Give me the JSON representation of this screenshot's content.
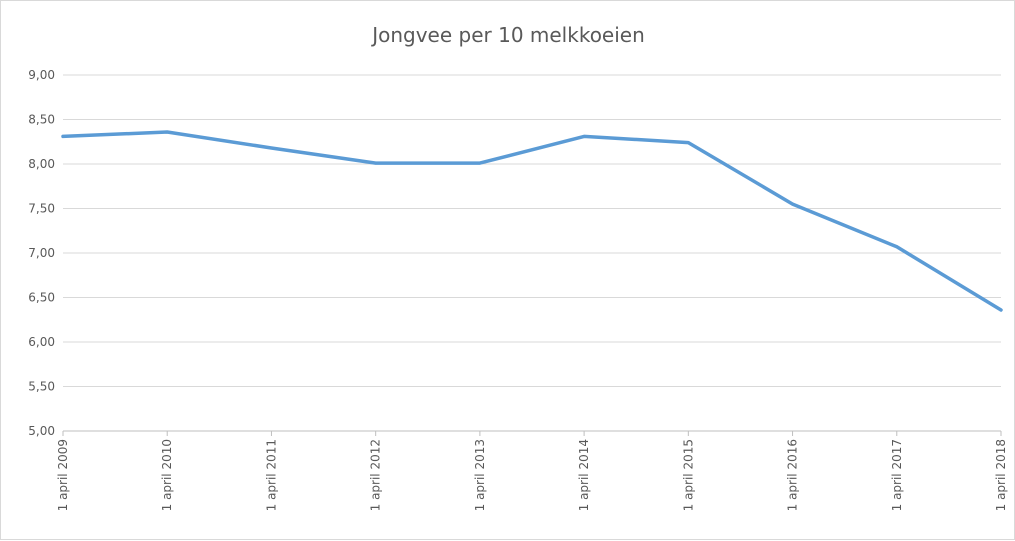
{
  "chart_data": {
    "type": "line",
    "title": "Jongvee per 10 melkkoeien",
    "xlabel": "",
    "ylabel": "",
    "ylim": [
      5.0,
      9.0
    ],
    "y_ticks": [
      "5,00",
      "5,50",
      "6,00",
      "6,50",
      "7,00",
      "7,50",
      "8,00",
      "8,50",
      "9,00"
    ],
    "categories": [
      "1 april 2009",
      "1 april 2010",
      "1 april 2011",
      "1 april 2012",
      "1 april 2013",
      "1 april 2014",
      "1 april 2015",
      "1 april 2016",
      "1 april 2017",
      "1 april 2018"
    ],
    "series": [
      {
        "values": [
          8.31,
          8.36,
          8.18,
          8.01,
          8.01,
          8.31,
          8.24,
          7.55,
          7.07,
          6.36
        ]
      }
    ],
    "grid": true,
    "legend": "none",
    "line_color": "#5b9bd5"
  }
}
